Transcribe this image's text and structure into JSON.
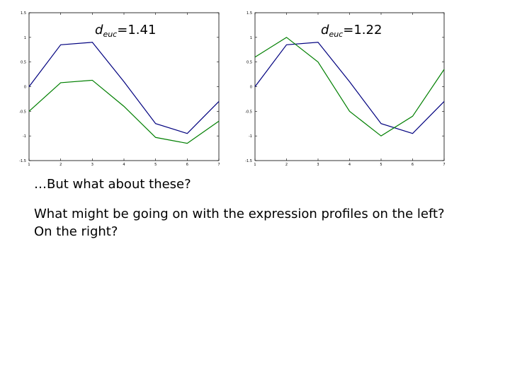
{
  "chart_data": [
    {
      "type": "line",
      "annotation": {
        "var": "d",
        "sub": "euc",
        "value": "=1.41"
      },
      "x": [
        1,
        2,
        3,
        4,
        5,
        6,
        7
      ],
      "xlim": [
        1,
        7
      ],
      "ylim": [
        -1.5,
        1.5
      ],
      "x_tick_labels": [
        "1",
        "2",
        "3",
        "4",
        "5",
        "6",
        "7"
      ],
      "y_tick_labels": [
        "-1.5",
        "-1",
        "-0.5",
        "0",
        "0.5",
        "1",
        "1.5"
      ],
      "grid": false,
      "series": [
        {
          "color": "#00007f",
          "values": [
            0.0,
            0.85,
            0.9,
            0.1,
            -0.75,
            -0.95,
            -0.3
          ]
        },
        {
          "color": "#007f00",
          "values": [
            -0.5,
            0.08,
            0.13,
            -0.4,
            -1.03,
            -1.15,
            -0.7
          ]
        }
      ]
    },
    {
      "type": "line",
      "annotation": {
        "var": "d",
        "sub": "euc",
        "value": "=1.22"
      },
      "x": [
        1,
        2,
        3,
        4,
        5,
        6,
        7
      ],
      "xlim": [
        1,
        7
      ],
      "ylim": [
        -1.5,
        1.5
      ],
      "x_tick_labels": [
        "1",
        "2",
        "3",
        "4",
        "5",
        "6",
        "7"
      ],
      "y_tick_labels": [
        "-1.5",
        "-1",
        "-0.5",
        "0",
        "0.5",
        "1",
        "1.5"
      ],
      "grid": false,
      "series": [
        {
          "color": "#00007f",
          "values": [
            0.0,
            0.85,
            0.9,
            0.1,
            -0.75,
            -0.95,
            -0.3
          ]
        },
        {
          "color": "#007f00",
          "values": [
            0.6,
            1.0,
            0.5,
            -0.5,
            -1.0,
            -0.6,
            0.35
          ]
        }
      ]
    }
  ],
  "text": {
    "line1": "…But what about these?",
    "line2": "What might be going on with the expression profiles on the left?  On the right?"
  }
}
